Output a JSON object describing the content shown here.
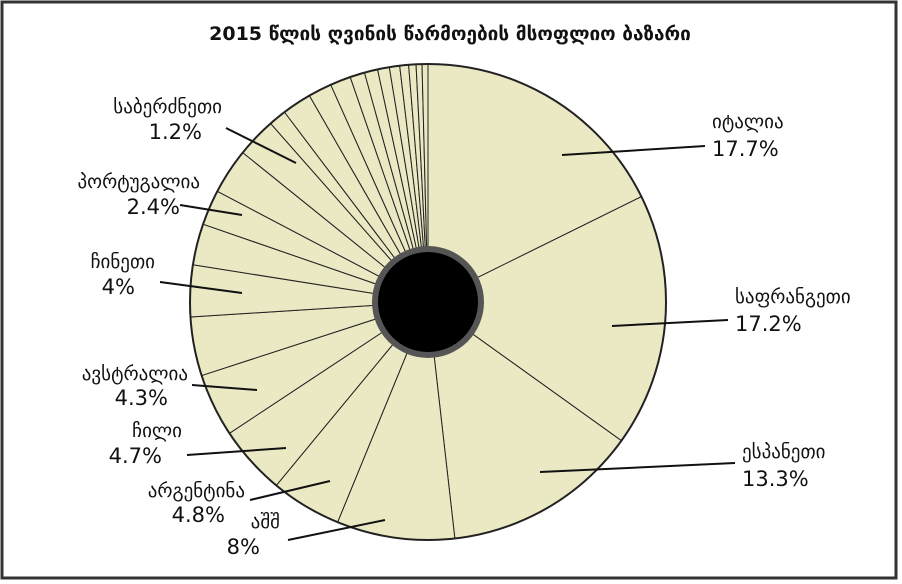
{
  "chart_data": {
    "type": "pie",
    "title": "2015 წლის ღვინის წარმოების მსოფლიო ბაზარი",
    "categories": [
      "იტალია",
      "საფრანგეთი",
      "ესპანეთი",
      "აშშ",
      "არგენტინა",
      "ჩილი",
      "ავსტრალია",
      "ჩინეთი",
      null,
      null,
      "პორტუგალია",
      null,
      null,
      "საბერძნეთი",
      null,
      null,
      null,
      null,
      null,
      null,
      null,
      null,
      null,
      null,
      null
    ],
    "values": [
      17.7,
      17.2,
      13.3,
      8,
      4.8,
      4.7,
      4.3,
      4,
      3.5,
      2.8,
      2.4,
      3.1,
      2.7,
      1.2,
      2.0,
      1.6,
      1.4,
      1.0,
      0.9,
      0.8,
      0.7,
      0.6,
      0.5,
      0.4,
      0.4
    ],
    "value_labels": [
      "17.7%",
      "17.2%",
      "13.3%",
      "8%",
      "4.8%",
      "4.7%",
      "4.3%",
      "4%",
      null,
      null,
      "2.4%",
      null,
      null,
      "1.2%",
      null,
      null,
      null,
      null,
      null,
      null,
      null,
      null,
      null,
      null,
      null
    ],
    "color": "#ebe9c3"
  }
}
